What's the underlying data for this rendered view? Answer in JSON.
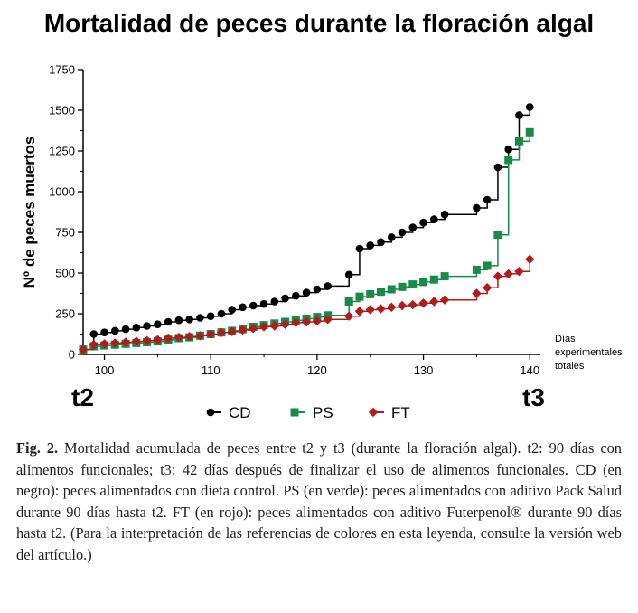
{
  "chart_data": {
    "type": "line",
    "title": "Mortalidad de peces durante la floración algal",
    "ylabel": "Nº de peces muertos",
    "xlabel_lines": [
      "Días",
      "experimentales",
      "totales"
    ],
    "xlim": [
      98,
      141
    ],
    "ylim": [
      0,
      1750
    ],
    "xticks": [
      100,
      110,
      120,
      130,
      140
    ],
    "yticks": [
      0,
      250,
      500,
      750,
      1000,
      1250,
      1500,
      1750
    ],
    "step": true,
    "markers": [
      {
        "label": "t2",
        "x": 98
      },
      {
        "label": "t3",
        "x": 140
      }
    ],
    "series": [
      {
        "name": "CD",
        "color": "#000000",
        "marker": "circle",
        "points": [
          [
            98,
            30
          ],
          [
            99,
            125
          ],
          [
            100,
            135
          ],
          [
            101,
            145
          ],
          [
            102,
            155
          ],
          [
            103,
            165
          ],
          [
            104,
            175
          ],
          [
            105,
            185
          ],
          [
            106,
            200
          ],
          [
            107,
            210
          ],
          [
            108,
            215
          ],
          [
            109,
            225
          ],
          [
            110,
            235
          ],
          [
            111,
            250
          ],
          [
            112,
            275
          ],
          [
            113,
            290
          ],
          [
            114,
            300
          ],
          [
            115,
            310
          ],
          [
            116,
            325
          ],
          [
            117,
            345
          ],
          [
            118,
            360
          ],
          [
            119,
            380
          ],
          [
            120,
            400
          ],
          [
            121,
            420
          ],
          [
            123,
            490
          ],
          [
            124,
            650
          ],
          [
            125,
            670
          ],
          [
            126,
            690
          ],
          [
            127,
            720
          ],
          [
            128,
            750
          ],
          [
            129,
            780
          ],
          [
            130,
            810
          ],
          [
            131,
            830
          ],
          [
            132,
            860
          ],
          [
            135,
            900
          ],
          [
            136,
            950
          ],
          [
            137,
            1150
          ],
          [
            138,
            1260
          ],
          [
            139,
            1470
          ],
          [
            140,
            1520
          ]
        ]
      },
      {
        "name": "PS",
        "color": "#1a8a4a",
        "marker": "square",
        "points": [
          [
            98,
            30
          ],
          [
            99,
            50
          ],
          [
            100,
            55
          ],
          [
            101,
            60
          ],
          [
            102,
            65
          ],
          [
            103,
            70
          ],
          [
            104,
            75
          ],
          [
            105,
            80
          ],
          [
            106,
            90
          ],
          [
            107,
            100
          ],
          [
            108,
            105
          ],
          [
            109,
            115
          ],
          [
            110,
            125
          ],
          [
            111,
            135
          ],
          [
            112,
            145
          ],
          [
            113,
            155
          ],
          [
            114,
            170
          ],
          [
            115,
            180
          ],
          [
            116,
            190
          ],
          [
            117,
            200
          ],
          [
            118,
            210
          ],
          [
            119,
            220
          ],
          [
            120,
            230
          ],
          [
            121,
            240
          ],
          [
            123,
            325
          ],
          [
            124,
            355
          ],
          [
            125,
            370
          ],
          [
            126,
            385
          ],
          [
            127,
            400
          ],
          [
            128,
            415
          ],
          [
            129,
            430
          ],
          [
            130,
            445
          ],
          [
            131,
            460
          ],
          [
            132,
            480
          ],
          [
            135,
            520
          ],
          [
            136,
            545
          ],
          [
            137,
            735
          ],
          [
            138,
            1195
          ],
          [
            139,
            1310
          ],
          [
            140,
            1365
          ]
        ]
      },
      {
        "name": "FT",
        "color": "#b01c1c",
        "marker": "diamond",
        "points": [
          [
            98,
            30
          ],
          [
            99,
            60
          ],
          [
            100,
            65
          ],
          [
            101,
            70
          ],
          [
            102,
            75
          ],
          [
            103,
            80
          ],
          [
            104,
            85
          ],
          [
            105,
            90
          ],
          [
            106,
            100
          ],
          [
            107,
            105
          ],
          [
            108,
            110
          ],
          [
            109,
            115
          ],
          [
            110,
            125
          ],
          [
            111,
            135
          ],
          [
            112,
            140
          ],
          [
            113,
            150
          ],
          [
            114,
            160
          ],
          [
            115,
            170
          ],
          [
            116,
            175
          ],
          [
            117,
            185
          ],
          [
            118,
            195
          ],
          [
            119,
            200
          ],
          [
            120,
            205
          ],
          [
            121,
            215
          ],
          [
            123,
            235
          ],
          [
            124,
            265
          ],
          [
            125,
            275
          ],
          [
            126,
            280
          ],
          [
            127,
            290
          ],
          [
            128,
            300
          ],
          [
            129,
            305
          ],
          [
            130,
            315
          ],
          [
            131,
            325
          ],
          [
            132,
            335
          ],
          [
            135,
            375
          ],
          [
            136,
            410
          ],
          [
            137,
            480
          ],
          [
            138,
            495
          ],
          [
            139,
            510
          ],
          [
            140,
            585
          ]
        ]
      }
    ]
  },
  "caption": {
    "label": "Fig. 2.",
    "text": "Mortalidad acumulada de peces entre t2 y t3 (durante la floración algal). t2: 90 días con alimentos funcionales; t3: 42 días después de finalizar el uso de alimentos funcionales. CD (en negro): peces alimentados con dieta control. PS (en verde): peces alimentados con aditivo Pack Salud durante 90 días hasta t2. FT (en rojo): peces alimentados con aditivo Futerpenol® durante 90 días hasta t2. (Para la interpretación de las referencias de colores en esta leyenda, consulte la versión web del artículo.)"
  }
}
